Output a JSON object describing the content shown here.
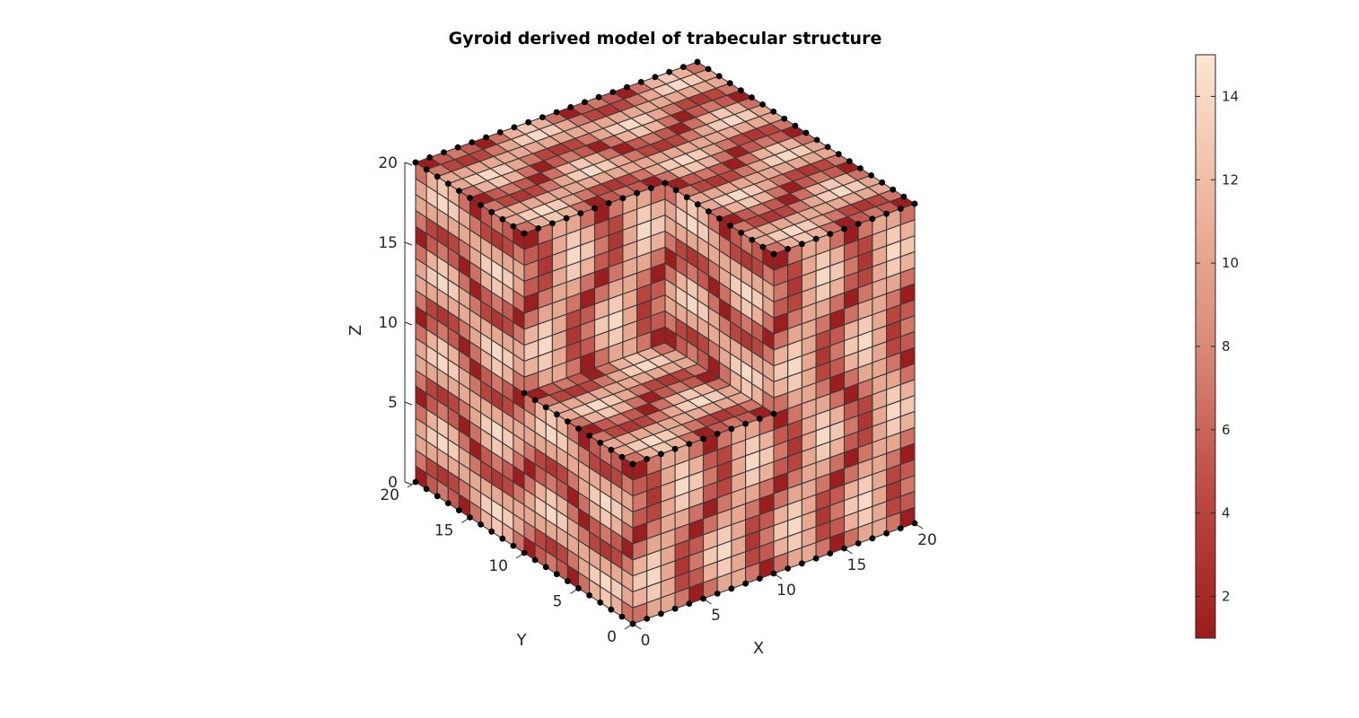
{
  "chart_data": {
    "type": "3d-voxel-surface",
    "title": "Gyroid derived model of trabecular structure",
    "xlabel": "X",
    "ylabel": "Y",
    "zlabel": "Z",
    "xlim": [
      0,
      20
    ],
    "ylim": [
      0,
      20
    ],
    "zlim": [
      0,
      20
    ],
    "xticks": [
      "0",
      "5",
      "10",
      "15",
      "20"
    ],
    "yticks": [
      "0",
      "5",
      "10",
      "15",
      "20"
    ],
    "zticks": [
      "0",
      "5",
      "10",
      "15",
      "20"
    ],
    "grid": true,
    "colorbar": {
      "position": "right",
      "range": [
        1,
        15
      ],
      "ticks": [
        "2",
        "4",
        "6",
        "8",
        "10",
        "12",
        "14"
      ],
      "colormap_low": "#9b1b1b",
      "colormap_mid": "#d98a78",
      "colormap_high": "#fbe6d4"
    },
    "voxel_grid_size": 20,
    "cutout_corner": "front-top (x 0-10, y 0-10, z 10-20 removed)",
    "colors": {
      "edge": "#3a3a3a",
      "node": "#000000"
    }
  }
}
